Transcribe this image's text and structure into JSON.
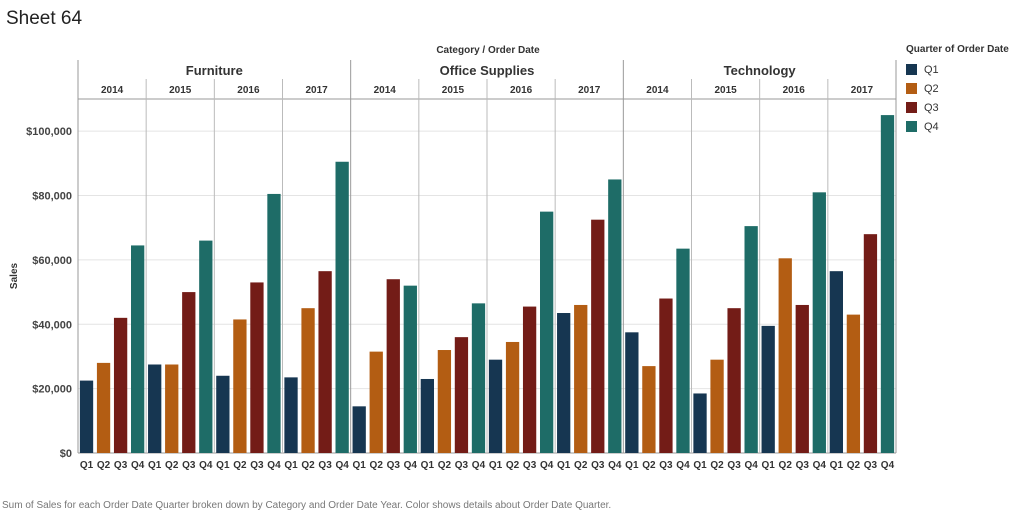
{
  "sheet": {
    "title": "Sheet 64",
    "caption": "Sum of Sales for each Order Date Quarter broken down by Category and Order Date Year.  Color shows details about Order Date Quarter."
  },
  "legend": {
    "title": "Quarter of Order Date",
    "items": [
      {
        "label": "Q1",
        "color": "#163651"
      },
      {
        "label": "Q2",
        "color": "#b35d13"
      },
      {
        "label": "Q3",
        "color": "#731c17"
      },
      {
        "label": "Q4",
        "color": "#1e6c67"
      }
    ]
  },
  "chart_data": {
    "type": "bar",
    "header_title": "Category / Order Date",
    "ylabel": "Sales",
    "xlabel": "",
    "ylim": [
      0,
      110000
    ],
    "yticks": [
      0,
      20000,
      40000,
      60000,
      80000,
      100000
    ],
    "ytick_labels": [
      "$0",
      "$20,000",
      "$40,000",
      "$60,000",
      "$80,000",
      "$100,000"
    ],
    "grid": true,
    "legend_position": "right",
    "quarters": [
      "Q1",
      "Q2",
      "Q3",
      "Q4"
    ],
    "categories": [
      {
        "name": "Furniture",
        "years": [
          {
            "year": "2014",
            "values": [
              22500,
              28000,
              42000,
              64500
            ]
          },
          {
            "year": "2015",
            "values": [
              27500,
              27500,
              50000,
              66000
            ]
          },
          {
            "year": "2016",
            "values": [
              24000,
              41500,
              53000,
              80500
            ]
          },
          {
            "year": "2017",
            "values": [
              23500,
              45000,
              56500,
              90500
            ]
          }
        ]
      },
      {
        "name": "Office Supplies",
        "years": [
          {
            "year": "2014",
            "values": [
              14500,
              31500,
              54000,
              52000
            ]
          },
          {
            "year": "2015",
            "values": [
              23000,
              32000,
              36000,
              46500
            ]
          },
          {
            "year": "2016",
            "values": [
              29000,
              34500,
              45500,
              75000
            ]
          },
          {
            "year": "2017",
            "values": [
              43500,
              46000,
              72500,
              85000
            ]
          }
        ]
      },
      {
        "name": "Technology",
        "years": [
          {
            "year": "2014",
            "values": [
              37500,
              27000,
              48000,
              63500
            ]
          },
          {
            "year": "2015",
            "values": [
              18500,
              29000,
              45000,
              70500
            ]
          },
          {
            "year": "2016",
            "values": [
              39500,
              60500,
              46000,
              81000
            ]
          },
          {
            "year": "2017",
            "values": [
              56500,
              43000,
              68000,
              105000
            ]
          }
        ]
      }
    ]
  }
}
